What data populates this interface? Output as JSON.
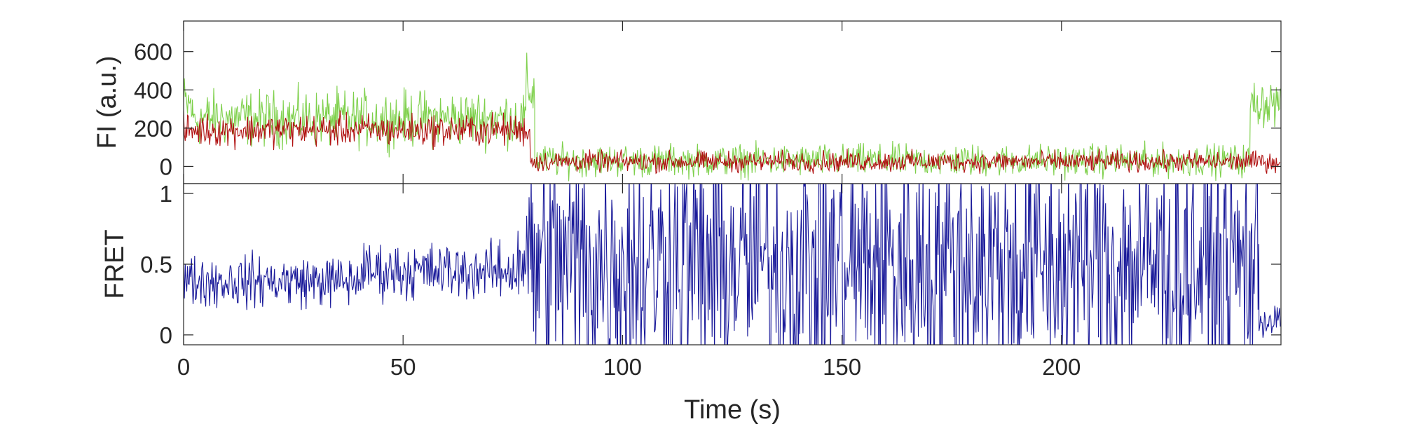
{
  "chart_data": [
    {
      "type": "line",
      "panel": "fluorescence",
      "ylabel": "FI (a.u.)",
      "xlim": [
        0,
        250
      ],
      "ylim": [
        -90,
        760
      ],
      "yticks": [
        0,
        200,
        400,
        600
      ],
      "xticks": [
        0,
        50,
        100,
        150,
        200
      ],
      "series": [
        {
          "color": "#7ed04b",
          "segments": [
            {
              "x0": 0,
              "x1": 2,
              "mean": 320,
              "noise": 110
            },
            {
              "x0": 2,
              "x1": 78,
              "mean": 250,
              "noise": 95
            },
            {
              "x0": 78,
              "x1": 80,
              "mean": 400,
              "noise": 110
            },
            {
              "x0": 80,
              "x1": 243,
              "mean": 30,
              "noise": 55
            },
            {
              "x0": 243,
              "x1": 250,
              "mean": 330,
              "noise": 80
            }
          ]
        },
        {
          "color": "#b01010",
          "segments": [
            {
              "x0": 0,
              "x1": 79,
              "mean": 190,
              "noise": 55
            },
            {
              "x0": 79,
              "x1": 250,
              "mean": 25,
              "noise": 35
            }
          ]
        }
      ]
    },
    {
      "type": "line",
      "panel": "fret",
      "ylabel": "FRET",
      "xlabel": "Time (s)",
      "xlim": [
        0,
        250
      ],
      "ylim": [
        -0.07,
        1.07
      ],
      "yticks": [
        0,
        0.5,
        1
      ],
      "xticks": [
        0,
        50,
        100,
        150,
        200
      ],
      "xtick_labels": [
        "0",
        "50",
        "100",
        "150",
        "200"
      ],
      "series": [
        {
          "color": "#1a1a9a",
          "segments": [
            {
              "x0": 0,
              "x1": 40,
              "mean": 0.38,
              "noise": 0.12
            },
            {
              "x0": 40,
              "x1": 76,
              "mean": 0.45,
              "noise": 0.13
            },
            {
              "x0": 76,
              "x1": 79,
              "mean": 0.55,
              "noise": 0.3
            },
            {
              "x0": 79,
              "x1": 245,
              "mean": 0.5,
              "noise": 0.6
            },
            {
              "x0": 245,
              "x1": 250,
              "mean": 0.1,
              "noise": 0.08
            }
          ]
        }
      ]
    }
  ]
}
